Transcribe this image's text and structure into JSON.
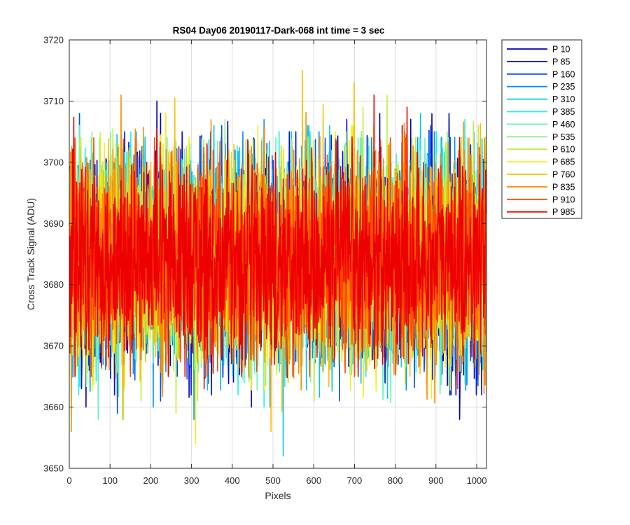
{
  "chart_data": {
    "type": "line",
    "title": "RS04 Day06 20190117-Dark-068 int time = 3 sec",
    "xlabel": "Pixels",
    "ylabel": "Cross Track Signal (ADU)",
    "xlim": [
      0,
      1024
    ],
    "ylim": [
      3650,
      3720
    ],
    "x_ticks": [
      0,
      100,
      200,
      300,
      400,
      500,
      600,
      700,
      800,
      900,
      1000
    ],
    "y_ticks": [
      3650,
      3660,
      3670,
      3680,
      3690,
      3700,
      3710,
      3720
    ],
    "grid": true,
    "legend_position": "outside-right",
    "x_points": 1024,
    "series": [
      {
        "name": "P 10",
        "color": "#0000B0",
        "mean": 3684,
        "min": 3658,
        "max": 3710
      },
      {
        "name": "P 85",
        "color": "#0010DC",
        "mean": 3684,
        "min": 3660,
        "max": 3707
      },
      {
        "name": "P 160",
        "color": "#0050F0",
        "mean": 3684,
        "min": 3659,
        "max": 3708
      },
      {
        "name": "P 235",
        "color": "#0090FF",
        "mean": 3684,
        "min": 3658,
        "max": 3707
      },
      {
        "name": "P 310",
        "color": "#00C8F0",
        "mean": 3684,
        "min": 3652,
        "max": 3708
      },
      {
        "name": "P 385",
        "color": "#20F0F0",
        "mean": 3684,
        "min": 3660,
        "max": 3707
      },
      {
        "name": "P 460",
        "color": "#60F0C0",
        "mean": 3684,
        "min": 3658,
        "max": 3706
      },
      {
        "name": "P 535",
        "color": "#90F090",
        "mean": 3684,
        "min": 3658,
        "max": 3707
      },
      {
        "name": "P 610",
        "color": "#C0F040",
        "mean": 3684,
        "min": 3659,
        "max": 3711
      },
      {
        "name": "P 685",
        "color": "#F0F010",
        "mean": 3684,
        "min": 3654,
        "max": 3708
      },
      {
        "name": "P 760",
        "color": "#F8C000",
        "mean": 3684,
        "min": 3656,
        "max": 3715
      },
      {
        "name": "P 835",
        "color": "#FF8C00",
        "mean": 3684,
        "min": 3656,
        "max": 3711
      },
      {
        "name": "P 910",
        "color": "#FF4800",
        "mean": 3684,
        "min": 3663,
        "max": 3706
      },
      {
        "name": "P 985",
        "color": "#EE0000",
        "mean": 3684,
        "min": 3663,
        "max": 3711
      }
    ]
  }
}
